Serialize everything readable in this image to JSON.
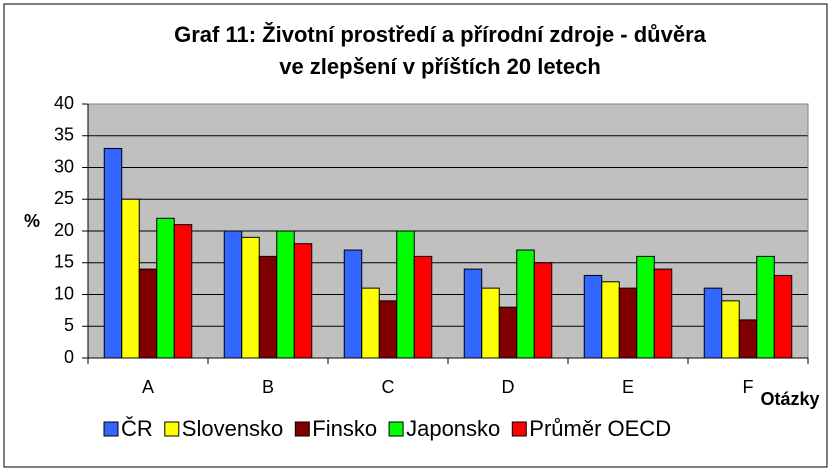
{
  "chart_data": {
    "type": "bar",
    "title": [
      "Graf 11: Životní prostředí a přírodní zdroje - důvěra",
      "ve zlepšení v příštích 20 letech"
    ],
    "y_label": "%",
    "x_label": "Otázky",
    "categories": [
      "A",
      "B",
      "C",
      "D",
      "E",
      "F"
    ],
    "series": [
      {
        "name": "ČR",
        "color": "#3366ff",
        "values": [
          33,
          20,
          17,
          14,
          13,
          11
        ]
      },
      {
        "name": "Slovensko",
        "color": "#ffff00",
        "values": [
          25,
          19,
          11,
          11,
          12,
          9
        ]
      },
      {
        "name": "Finsko",
        "color": "#800000",
        "values": [
          14,
          16,
          9,
          8,
          11,
          6
        ]
      },
      {
        "name": "Japonsko",
        "color": "#00ff00",
        "values": [
          22,
          20,
          20,
          17,
          16,
          16
        ]
      },
      {
        "name": "Průměr OECD",
        "color": "#ff0000",
        "values": [
          21,
          18,
          16,
          15,
          14,
          13
        ]
      }
    ],
    "ylim": [
      0,
      40
    ],
    "yticks": [
      0,
      5,
      10,
      15,
      20,
      25,
      30,
      35,
      40
    ],
    "grid": true,
    "legend": "bottom"
  }
}
